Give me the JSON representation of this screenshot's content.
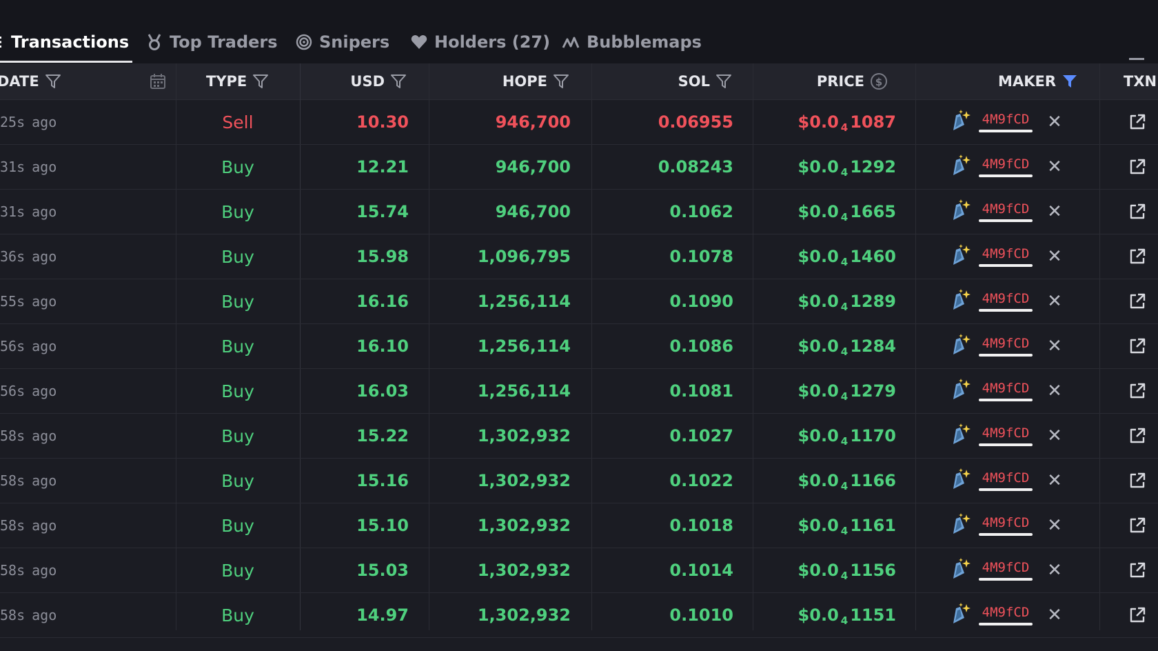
{
  "tabs": [
    {
      "label": "Transactions",
      "icon": "list-icon",
      "active": true
    },
    {
      "label": "Top Traders",
      "icon": "medal-icon",
      "active": false
    },
    {
      "label": "Snipers",
      "icon": "crosshair-icon",
      "active": false
    },
    {
      "label": "Holders (27)",
      "icon": "heart-icon",
      "active": false
    },
    {
      "label": "Bubblemaps",
      "icon": "bubblemaps-icon",
      "active": false
    }
  ],
  "columns": {
    "date": "DATE",
    "type": "TYPE",
    "usd": "USD",
    "hope": "HOPE",
    "sol": "SOL",
    "price": "PRICE",
    "maker": "MAKER",
    "txn": "TXN"
  },
  "colors": {
    "buy": "#4fd07e",
    "sell": "#f0525b",
    "maker_filter_active": "#5b8cff"
  },
  "rows": [
    {
      "age": "25s",
      "ago": "ago",
      "type": "Sell",
      "usd": "10.30",
      "hope": "946,700",
      "sol": "0.06955",
      "price_prefix": "$0.0",
      "price_zeros": "4",
      "price_digits": "1087",
      "maker": "4M9fCD"
    },
    {
      "age": "31s",
      "ago": "ago",
      "type": "Buy",
      "usd": "12.21",
      "hope": "946,700",
      "sol": "0.08243",
      "price_prefix": "$0.0",
      "price_zeros": "4",
      "price_digits": "1292",
      "maker": "4M9fCD"
    },
    {
      "age": "31s",
      "ago": "ago",
      "type": "Buy",
      "usd": "15.74",
      "hope": "946,700",
      "sol": "0.1062",
      "price_prefix": "$0.0",
      "price_zeros": "4",
      "price_digits": "1665",
      "maker": "4M9fCD"
    },
    {
      "age": "36s",
      "ago": "ago",
      "type": "Buy",
      "usd": "15.98",
      "hope": "1,096,795",
      "sol": "0.1078",
      "price_prefix": "$0.0",
      "price_zeros": "4",
      "price_digits": "1460",
      "maker": "4M9fCD"
    },
    {
      "age": "55s",
      "ago": "ago",
      "type": "Buy",
      "usd": "16.16",
      "hope": "1,256,114",
      "sol": "0.1090",
      "price_prefix": "$0.0",
      "price_zeros": "4",
      "price_digits": "1289",
      "maker": "4M9fCD"
    },
    {
      "age": "56s",
      "ago": "ago",
      "type": "Buy",
      "usd": "16.10",
      "hope": "1,256,114",
      "sol": "0.1086",
      "price_prefix": "$0.0",
      "price_zeros": "4",
      "price_digits": "1284",
      "maker": "4M9fCD"
    },
    {
      "age": "56s",
      "ago": "ago",
      "type": "Buy",
      "usd": "16.03",
      "hope": "1,256,114",
      "sol": "0.1081",
      "price_prefix": "$0.0",
      "price_zeros": "4",
      "price_digits": "1279",
      "maker": "4M9fCD"
    },
    {
      "age": "58s",
      "ago": "ago",
      "type": "Buy",
      "usd": "15.22",
      "hope": "1,302,932",
      "sol": "0.1027",
      "price_prefix": "$0.0",
      "price_zeros": "4",
      "price_digits": "1170",
      "maker": "4M9fCD"
    },
    {
      "age": "58s",
      "ago": "ago",
      "type": "Buy",
      "usd": "15.16",
      "hope": "1,302,932",
      "sol": "0.1022",
      "price_prefix": "$0.0",
      "price_zeros": "4",
      "price_digits": "1166",
      "maker": "4M9fCD"
    },
    {
      "age": "58s",
      "ago": "ago",
      "type": "Buy",
      "usd": "15.10",
      "hope": "1,302,932",
      "sol": "0.1018",
      "price_prefix": "$0.0",
      "price_zeros": "4",
      "price_digits": "1161",
      "maker": "4M9fCD"
    },
    {
      "age": "58s",
      "ago": "ago",
      "type": "Buy",
      "usd": "15.03",
      "hope": "1,302,932",
      "sol": "0.1014",
      "price_prefix": "$0.0",
      "price_zeros": "4",
      "price_digits": "1156",
      "maker": "4M9fCD"
    },
    {
      "age": "58s",
      "ago": "ago",
      "type": "Buy",
      "usd": "14.97",
      "hope": "1,302,932",
      "sol": "0.1010",
      "price_prefix": "$0.0",
      "price_zeros": "4",
      "price_digits": "1151",
      "maker": "4M9fCD"
    }
  ]
}
